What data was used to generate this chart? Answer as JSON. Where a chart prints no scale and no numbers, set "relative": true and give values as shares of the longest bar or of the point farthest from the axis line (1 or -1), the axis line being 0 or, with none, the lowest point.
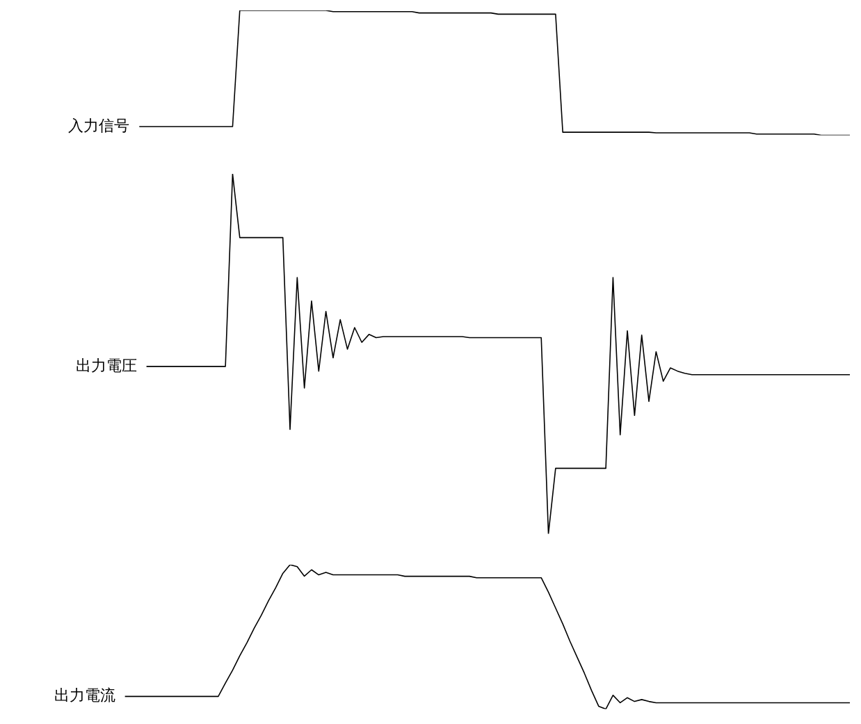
{
  "chart_data": [
    {
      "type": "line",
      "relative": true,
      "marker": "none",
      "line_style": "solid",
      "categories": [
        null,
        null,
        null,
        null,
        null,
        null,
        null,
        null,
        null,
        null,
        null,
        null,
        null,
        null,
        null,
        null,
        null,
        null,
        null,
        null,
        null,
        null,
        null,
        null,
        null,
        null,
        null,
        null,
        null,
        null,
        null,
        null,
        null,
        null,
        null,
        null,
        null,
        null,
        null,
        null,
        null,
        null,
        null,
        null,
        null,
        null,
        null,
        null,
        null,
        null,
        null,
        null,
        null,
        null,
        null,
        null,
        null,
        null,
        null,
        null,
        null,
        null,
        null,
        null,
        null,
        null,
        null,
        null,
        null,
        null,
        null,
        null,
        null,
        null,
        null,
        null,
        null,
        null,
        null,
        null,
        null,
        null,
        null,
        null,
        null,
        null,
        null,
        null,
        null,
        null,
        null,
        null,
        null,
        null,
        null,
        null,
        null,
        null,
        null,
        null,
        null,
        null,
        null,
        null
      ],
      "series": [
        {
          "name": "入力信号",
          "color": "#000000",
          "values": [
            null,
            null,
            null,
            null,
            0.07,
            0.07,
            0.07,
            0.07,
            0.07,
            0.07,
            0.07,
            0.07,
            0.07,
            0.07,
            0.07,
            0.07,
            0.07,
            0.07,
            1.0,
            1.0,
            1.0,
            1.0,
            1.0,
            1.0,
            1.0,
            1.0,
            1.0,
            1.0,
            1.0,
            1.0,
            1.0,
            0.99,
            0.99,
            0.99,
            0.99,
            0.99,
            0.99,
            0.99,
            0.99,
            0.99,
            0.99,
            0.99,
            0.99,
            0.98,
            0.98,
            0.98,
            0.98,
            0.98,
            0.98,
            0.98,
            0.98,
            0.98,
            0.98,
            0.98,
            0.97,
            0.97,
            0.97,
            0.97,
            0.97,
            0.97,
            0.97,
            0.97,
            0.97,
            0.025,
            0.025,
            0.025,
            0.025,
            0.025,
            0.025,
            0.025,
            0.025,
            0.025,
            0.025,
            0.025,
            0.025,
            0.025,
            0.02,
            0.02,
            0.02,
            0.02,
            0.02,
            0.02,
            0.02,
            0.02,
            0.02,
            0.02,
            0.02,
            0.02,
            0.02,
            0.02,
            0.01,
            0.01,
            0.01,
            0.01,
            0.01,
            0.01,
            0.01,
            0.01,
            0.01,
            0,
            0,
            0,
            0,
            0
          ]
        }
      ]
    },
    {
      "type": "line",
      "relative": true,
      "marker": "none",
      "line_style": "solid",
      "categories": [
        null,
        null,
        null,
        null,
        null,
        null,
        null,
        null,
        null,
        null,
        null,
        null,
        null,
        null,
        null,
        null,
        null,
        null,
        null,
        null,
        null,
        null,
        null,
        null,
        null,
        null,
        null,
        null,
        null,
        null,
        null,
        null,
        null,
        null,
        null,
        null,
        null,
        null,
        null,
        null,
        null,
        null,
        null,
        null,
        null,
        null,
        null,
        null,
        null,
        null,
        null,
        null,
        null,
        null,
        null,
        null,
        null,
        null,
        null,
        null,
        null,
        null,
        null,
        null,
        null,
        null,
        null,
        null,
        null,
        null,
        null,
        null,
        null,
        null,
        null,
        null,
        null,
        null,
        null,
        null,
        null,
        null,
        null,
        null,
        null,
        null,
        null,
        null,
        null,
        null,
        null,
        null,
        null,
        null,
        null,
        null,
        null,
        null,
        null,
        null,
        null,
        null,
        null,
        null
      ],
      "series": [
        {
          "name": "出力電圧",
          "color": "#000000",
          "values": [
            null,
            null,
            null,
            null,
            null,
            0.465,
            0.465,
            0.465,
            0.465,
            0.465,
            0.465,
            0.465,
            0.465,
            0.465,
            0.465,
            0.465,
            0.465,
            1.0,
            0.823,
            0.823,
            0.823,
            0.823,
            0.823,
            0.823,
            0.823,
            0.29,
            0.712,
            0.405,
            0.647,
            0.452,
            0.618,
            0.489,
            0.595,
            0.513,
            0.573,
            0.532,
            0.554,
            0.545,
            0.548,
            0.548,
            0.548,
            0.548,
            0.548,
            0.548,
            0.548,
            0.548,
            0.548,
            0.548,
            0.548,
            0.548,
            0.545,
            0.545,
            0.545,
            0.545,
            0.545,
            0.545,
            0.545,
            0.545,
            0.545,
            0.545,
            0.545,
            0.0,
            0.182,
            0.182,
            0.182,
            0.182,
            0.182,
            0.182,
            0.182,
            0.182,
            0.712,
            0.275,
            0.564,
            0.329,
            0.552,
            0.368,
            0.506,
            0.424,
            0.461,
            0.452,
            0.446,
            0.442,
            0.442,
            0.442,
            0.442,
            0.442,
            0.442,
            0.442,
            0.442,
            0.442,
            0.442,
            0.442,
            0.442,
            0.442,
            0.442,
            0.442,
            0.442,
            0.442,
            0.442,
            0.442,
            0.442,
            0.442,
            0.442,
            0.442
          ]
        }
      ]
    },
    {
      "type": "line",
      "relative": true,
      "marker": "none",
      "line_style": "solid",
      "categories": [
        null,
        null,
        null,
        null,
        null,
        null,
        null,
        null,
        null,
        null,
        null,
        null,
        null,
        null,
        null,
        null,
        null,
        null,
        null,
        null,
        null,
        null,
        null,
        null,
        null,
        null,
        null,
        null,
        null,
        null,
        null,
        null,
        null,
        null,
        null,
        null,
        null,
        null,
        null,
        null,
        null,
        null,
        null,
        null,
        null,
        null,
        null,
        null,
        null,
        null,
        null,
        null,
        null,
        null,
        null,
        null,
        null,
        null,
        null,
        null,
        null,
        null,
        null,
        null,
        null,
        null,
        null,
        null,
        null,
        null,
        null,
        null,
        null,
        null,
        null,
        null,
        null,
        null,
        null,
        null,
        null,
        null,
        null,
        null,
        null,
        null,
        null,
        null,
        null,
        null,
        null,
        null,
        null,
        null,
        null,
        null,
        null,
        null,
        null,
        null,
        null,
        null,
        null,
        null
      ],
      "series": [
        {
          "name": "出力電流",
          "color": "#000000",
          "values": [
            null,
            null,
            0.088,
            0.088,
            0.088,
            0.088,
            0.088,
            0.088,
            0.088,
            0.088,
            0.088,
            0.088,
            0.088,
            0.088,
            0.088,
            0.088,
            0.18,
            0.27,
            0.37,
            0.46,
            0.56,
            0.65,
            0.75,
            0.84,
            0.94,
            1.0,
            0.987,
            0.921,
            0.965,
            0.93,
            0.947,
            0.93,
            0.93,
            0.93,
            0.93,
            0.93,
            0.93,
            0.93,
            0.93,
            0.93,
            0.93,
            0.92,
            0.92,
            0.92,
            0.92,
            0.92,
            0.92,
            0.92,
            0.92,
            0.92,
            0.92,
            0.91,
            0.91,
            0.91,
            0.91,
            0.91,
            0.91,
            0.91,
            0.91,
            0.91,
            0.91,
            0.81,
            0.7,
            0.59,
            0.47,
            0.36,
            0.25,
            0.13,
            0.02,
            0,
            0.096,
            0.044,
            0.079,
            0.053,
            0.066,
            0.053,
            0.044,
            0.044,
            0.044,
            0.044,
            0.044,
            0.044,
            0.044,
            0.044,
            0.044,
            0.044,
            0.044,
            0.044,
            0.044,
            0.044,
            0.044,
            0.044,
            0.044,
            0.044,
            0.044,
            0.044,
            0.044,
            0.044,
            0.044,
            0.044,
            0.044,
            0.044,
            0.044,
            0.044
          ]
        }
      ]
    }
  ]
}
